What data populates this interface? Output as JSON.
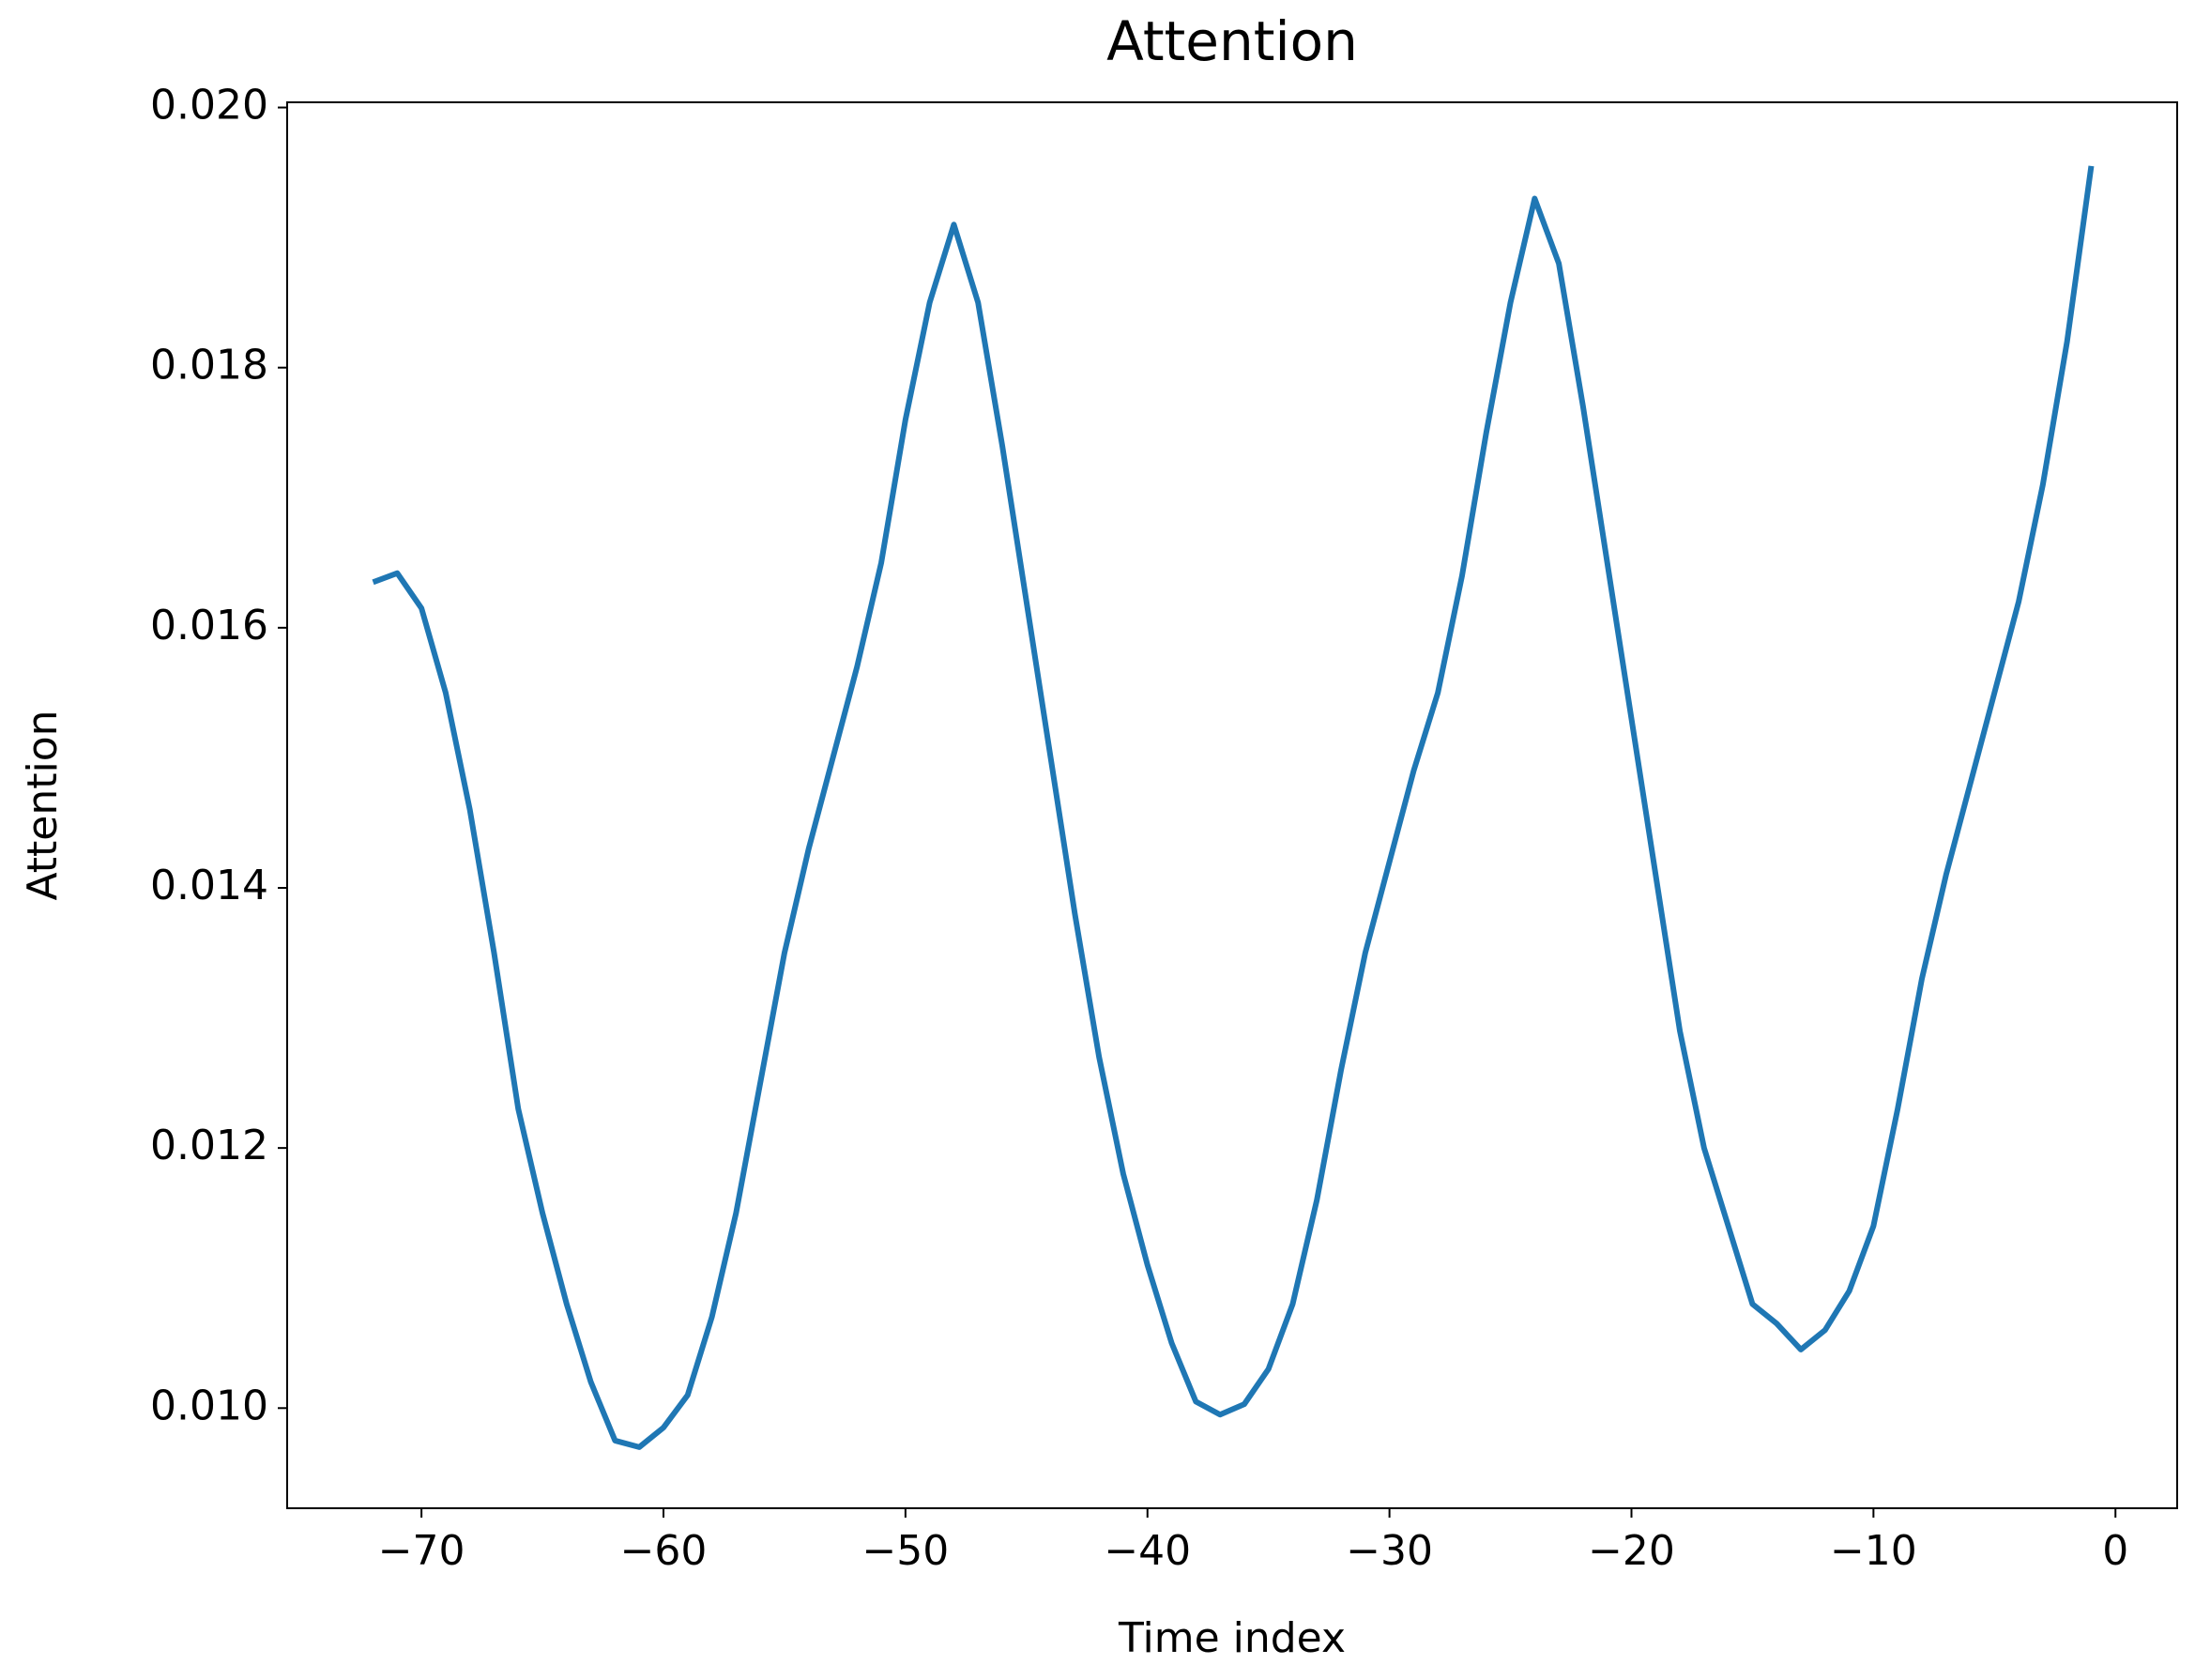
{
  "chart_data": {
    "type": "line",
    "title": "Attention",
    "xlabel": "Time index",
    "ylabel": "Attention",
    "x": [
      -72,
      -71,
      -70,
      -69,
      -68,
      -67,
      -66,
      -65,
      -64,
      -63,
      -62,
      -61,
      -60,
      -59,
      -58,
      -57,
      -56,
      -55,
      -54,
      -53,
      -52,
      -51,
      -50,
      -49,
      -48,
      -47,
      -46,
      -45,
      -44,
      -43,
      -42,
      -41,
      -40,
      -39,
      -38,
      -37,
      -36,
      -35,
      -34,
      -33,
      -32,
      -31,
      -30,
      -29,
      -28,
      -27,
      -26,
      -25,
      -24,
      -23,
      -22,
      -21,
      -20,
      -19,
      -18,
      -17,
      -16,
      -15,
      -14,
      -13,
      -12,
      -11,
      -10,
      -9,
      -8,
      -7,
      -6,
      -5,
      -4,
      -3,
      -2,
      -1
    ],
    "series": [
      {
        "name": "Attention",
        "color": "#1f77b4",
        "values": [
          0.01635,
          0.01642,
          0.01615,
          0.0155,
          0.0146,
          0.0135,
          0.0123,
          0.0115,
          0.0108,
          0.0102,
          0.00975,
          0.0097,
          0.00985,
          0.0101,
          0.0107,
          0.0115,
          0.0125,
          0.0135,
          0.0143,
          0.015,
          0.0157,
          0.0165,
          0.0176,
          0.0185,
          0.0191,
          0.0185,
          0.0174,
          0.0162,
          0.015,
          0.0138,
          0.0127,
          0.0118,
          0.0111,
          0.0105,
          0.01005,
          0.00995,
          0.01003,
          0.0103,
          0.0108,
          0.0116,
          0.0126,
          0.0135,
          0.0142,
          0.0149,
          0.0155,
          0.0164,
          0.0175,
          0.0185,
          0.0193,
          0.0188,
          0.0177,
          0.0165,
          0.0153,
          0.0141,
          0.0129,
          0.012,
          0.0114,
          0.0108,
          0.01065,
          0.01045,
          0.0106,
          0.0109,
          0.0114,
          0.0123,
          0.0133,
          0.0141,
          0.0148,
          0.0155,
          0.0162,
          0.0171,
          0.0182,
          0.01955
        ]
      }
    ],
    "xlim": [
      -75.55,
      2.55
    ],
    "xticks": [
      {
        "value": -70,
        "label": "−70"
      },
      {
        "value": -60,
        "label": "−60"
      },
      {
        "value": -50,
        "label": "−50"
      },
      {
        "value": -40,
        "label": "−40"
      },
      {
        "value": -30,
        "label": "−30"
      },
      {
        "value": -20,
        "label": "−20"
      },
      {
        "value": -10,
        "label": "−10"
      },
      0
    ],
    "ylim": [
      0.00923,
      0.02004
    ],
    "yticks": [
      {
        "value": 0.01,
        "label": "0.010"
      },
      {
        "value": 0.012,
        "label": "0.012"
      },
      {
        "value": 0.014,
        "label": "0.014"
      },
      {
        "value": 0.016,
        "label": "0.016"
      },
      {
        "value": 0.018,
        "label": "0.018"
      },
      {
        "value": 0.02,
        "label": "0.020"
      }
    ],
    "grid": false
  }
}
